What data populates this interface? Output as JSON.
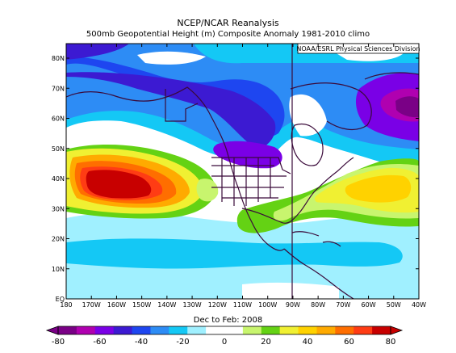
{
  "title": {
    "line1": "NCEP/NCAR Reanalysis",
    "line2": "500mb Geopotential Height (m) Composite Anomaly 1981-2010 climo"
  },
  "credit": "NOAA/ESRL Physical Sciences Division",
  "date_label": "Dec to Feb: 2008",
  "map": {
    "lon_labels": [
      "180",
      "170W",
      "160W",
      "150W",
      "140W",
      "130W",
      "120W",
      "110W",
      "100W",
      "90W",
      "80W",
      "70W",
      "60W",
      "50W",
      "40W"
    ],
    "lat_labels": [
      "EQ",
      "10N",
      "20N",
      "30N",
      "40N",
      "50N",
      "60N",
      "70N",
      "80N"
    ]
  },
  "colorbar": {
    "labels": [
      "-80",
      "-60",
      "-40",
      "-20",
      "0",
      "20",
      "40",
      "60",
      "80"
    ],
    "colors": [
      "#7a0086",
      "#b000b0",
      "#7a00e6",
      "#3c1ad2",
      "#1e46f0",
      "#2d8cf5",
      "#14c8f5",
      "#a0f0ff",
      "#ffffff",
      "#ffffff",
      "#c8f56e",
      "#64d214",
      "#f0f032",
      "#ffd200",
      "#ffaa00",
      "#ff6e00",
      "#ff3c14",
      "#c80000"
    ]
  }
}
